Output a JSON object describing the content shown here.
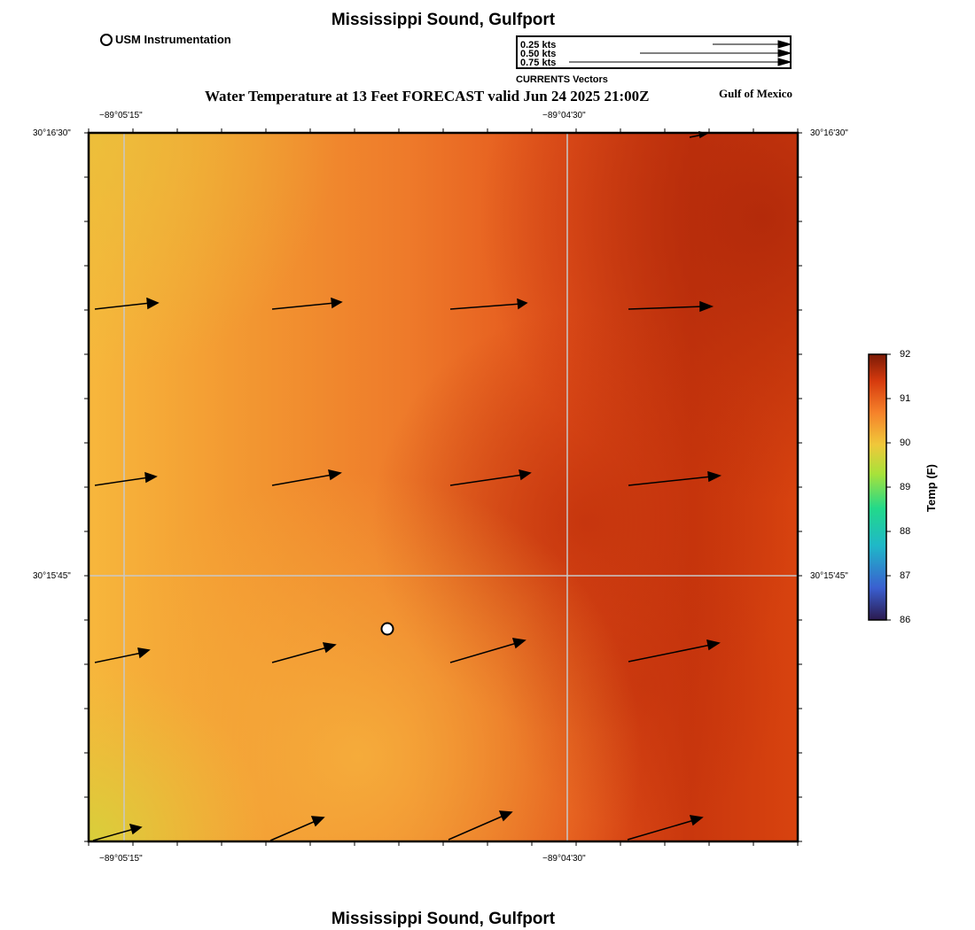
{
  "header": {
    "title": "Mississippi Sound, Gulfport",
    "map_title": "Water Temperature at 13 Feet FORECAST valid Jun 24 2025 21:00Z",
    "region": "Gulf of Mexico"
  },
  "legend": {
    "station_label": "USM Instrumentation",
    "vector_caption": "CURRENTS Vectors",
    "vector_scale": [
      {
        "label": "0.25 kts",
        "speed_kts": 0.25
      },
      {
        "label": "0.50 kts",
        "speed_kts": 0.5
      },
      {
        "label": "0.75 kts",
        "speed_kts": 0.75
      }
    ]
  },
  "axes": {
    "lon_ticks": [
      "−89°05'15\"",
      "−89°04'30\""
    ],
    "lat_ticks": [
      "30°16'30\"",
      "30°15'45\""
    ]
  },
  "colorbar": {
    "title": "Temp (F)",
    "min": 86,
    "max": 92,
    "ticks": [
      "92",
      "91",
      "90",
      "89",
      "88",
      "87",
      "86"
    ],
    "colors": [
      "#2b1a4f",
      "#3a5fd0",
      "#1fb8c8",
      "#22d98a",
      "#a8e23a",
      "#f0c83a",
      "#f6822a",
      "#d63a0e",
      "#7a1a06"
    ]
  },
  "map": {
    "vectors_note": "current vectors flowing roughly east-northeast",
    "colors": {
      "warm_yellow": "#f7b73c",
      "orange": "#f0742a",
      "deep_orange": "#e04a10",
      "red_brown": "#b82a08"
    }
  },
  "footer": {
    "title": "Mississippi Sound, Gulfport"
  }
}
